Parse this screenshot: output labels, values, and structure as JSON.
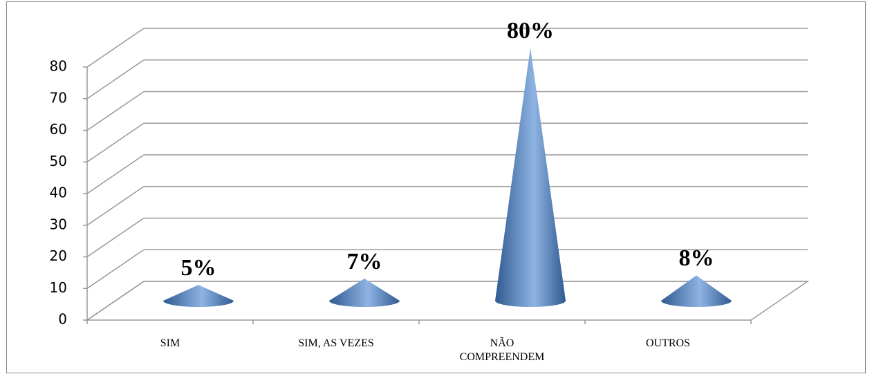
{
  "chart_data": {
    "type": "cone",
    "categories": [
      "SIM",
      "SIM, AS VEZES",
      "NÃO COMPREENDEM",
      "OUTROS"
    ],
    "values": [
      5,
      7,
      80,
      8
    ],
    "value_labels": [
      "5%",
      "7%",
      "80%",
      "8%"
    ],
    "color": "#4f81bd",
    "ylim": [
      0,
      80
    ],
    "yticks": [
      0,
      10,
      20,
      30,
      40,
      50,
      60,
      70,
      80
    ],
    "grid": true
  }
}
